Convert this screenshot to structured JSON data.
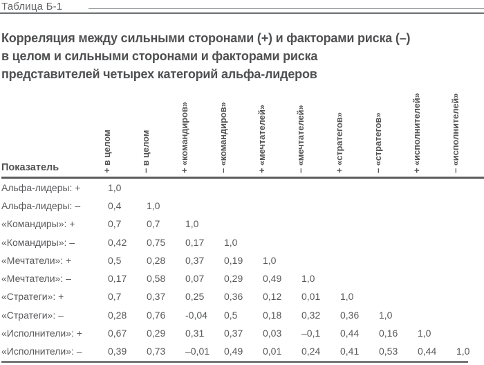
{
  "page": {
    "table_label": "Таблица Б-1",
    "title_line1": "Корреляция между сильными сторонами (+) и факторами риска (–)",
    "title_line2": "в целом и сильными сторонами и факторами риска",
    "title_line3": "представителей четырех категорий альфа-лидеров"
  },
  "colors": {
    "text_gray": "#58595b",
    "title_gray": "#4f5052",
    "rule_gray": "#6d6e70"
  },
  "table": {
    "corner_header": "Показатель",
    "columns": [
      "+ в целом",
      "– в целом",
      "+ «командиров»",
      "– «командиров»",
      "+ «мечтателей»",
      "– «мечтателей»",
      "+ «стратегов»",
      "– «стратегов»",
      "+ «исполнителей»",
      "– «исполнителей»"
    ],
    "rows": [
      {
        "label": "Альфа-лидеры: +",
        "values": [
          "1,0",
          "",
          "",
          "",
          "",
          "",
          "",
          "",
          "",
          ""
        ]
      },
      {
        "label": "Альфа-лидеры: –",
        "values": [
          "0,4",
          "1,0",
          "",
          "",
          "",
          "",
          "",
          "",
          "",
          ""
        ]
      },
      {
        "label": "«Командиры»: +",
        "values": [
          "0,7",
          "0,7",
          "1,0",
          "",
          "",
          "",
          "",
          "",
          "",
          ""
        ]
      },
      {
        "label": "«Командиры»: –",
        "values": [
          "0,42",
          "0,75",
          "0,17",
          "1,0",
          "",
          "",
          "",
          "",
          "",
          ""
        ]
      },
      {
        "label": "«Мечтатели»: +",
        "values": [
          "0,5",
          "0,28",
          "0,37",
          "0,19",
          "1,0",
          "",
          "",
          "",
          "",
          ""
        ]
      },
      {
        "label": "«Мечтатели»: –",
        "values": [
          "0,17",
          "0,58",
          "0,07",
          "0,29",
          "0,49",
          "1,0",
          "",
          "",
          "",
          ""
        ]
      },
      {
        "label": "«Стратеги»: +",
        "values": [
          "0,7",
          "0,37",
          "0,25",
          "0,36",
          "0,12",
          "0,01",
          "1,0",
          "",
          "",
          ""
        ]
      },
      {
        "label": "«Стратеги»: –",
        "values": [
          "0,28",
          "0,76",
          "-0,04",
          "0,5",
          "0,18",
          "0,32",
          "0,36",
          "1,0",
          "",
          ""
        ]
      },
      {
        "label": "«Исполнители»: +",
        "values": [
          "0,67",
          "0,29",
          "0,31",
          "0,37",
          "0,03",
          "–0,1",
          "0,44",
          "0,16",
          "1,0",
          ""
        ]
      },
      {
        "label": "«Исполнители»: –",
        "values": [
          "0,39",
          "0,73",
          "–0,01",
          "0,49",
          "0,01",
          "0,24",
          "0,41",
          "0,53",
          "0,44",
          "1,0"
        ]
      }
    ]
  }
}
